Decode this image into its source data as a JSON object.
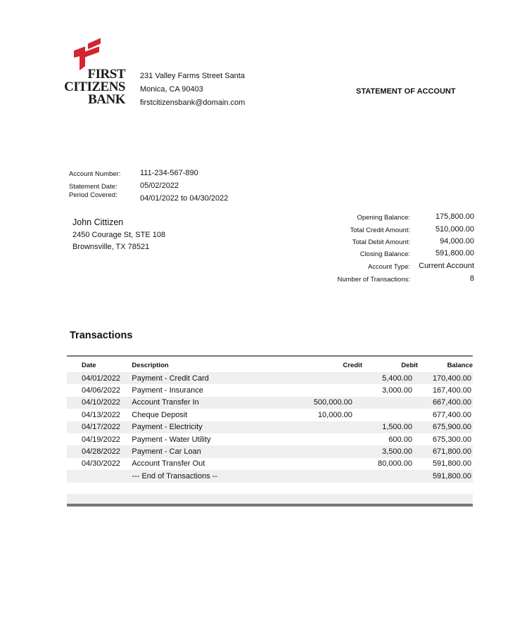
{
  "bank": {
    "logo_text": [
      "FIRST",
      "CITIZENS",
      "BANK"
    ],
    "brand_color": "#d22630",
    "address_line1": "231 Valley Farms Street Santa",
    "address_line2": "Monica, CA 90403",
    "email": "firstcitizensbank@domain.com"
  },
  "title": "STATEMENT OF ACCOUNT",
  "account": {
    "number_label": "Account Number:",
    "number": "111-234-567-890",
    "date_label": "Statement Date:",
    "date": "05/02/2022",
    "period_label": "Period Covered:",
    "period": "04/01/2022 to 04/30/2022"
  },
  "customer": {
    "name": "John Cittizen",
    "address_line1": "2450 Courage St, STE 108",
    "address_line2": "Brownsville, TX 78521"
  },
  "summary": [
    {
      "label": "Opening Balance:",
      "value": "175,800.00"
    },
    {
      "label": "Total Credit Amount:",
      "value": "510,000.00"
    },
    {
      "label": "Total Debit Amount:",
      "value": "94,000.00"
    },
    {
      "label": "Closing Balance:",
      "value": "591,800.00"
    },
    {
      "label": "Account Type:",
      "value": "Current Account"
    },
    {
      "label": "Number of Transactions:",
      "value": "8"
    }
  ],
  "transactions": {
    "heading": "Transactions",
    "columns": [
      "Date",
      "Description",
      "Credit",
      "Debit",
      "Balance"
    ],
    "rows": [
      [
        "04/01/2022",
        "Payment - Credit Card",
        "",
        "5,400.00",
        "170,400.00"
      ],
      [
        "04/06/2022",
        "Payment - Insurance",
        "",
        "3,000.00",
        "167,400.00"
      ],
      [
        "04/10/2022",
        "Account Transfer In",
        "500,000.00",
        "",
        "667,400.00"
      ],
      [
        "04/13/2022",
        "Cheque Deposit",
        "10,000.00",
        "",
        "677,400.00"
      ],
      [
        "04/17/2022",
        "Payment - Electricity",
        "",
        "1,500.00",
        "675,900.00"
      ],
      [
        "04/19/2022",
        "Payment - Water Utility",
        "",
        "600.00",
        "675,300.00"
      ],
      [
        "04/28/2022",
        "Payment - Car Loan",
        "",
        "3,500.00",
        "671,800.00"
      ],
      [
        "04/30/2022",
        "Account Transfer Out",
        "",
        "80,000.00",
        "591,800.00"
      ],
      [
        "",
        "--- End of Transactions --",
        "",
        "",
        "591,800.00"
      ]
    ]
  }
}
